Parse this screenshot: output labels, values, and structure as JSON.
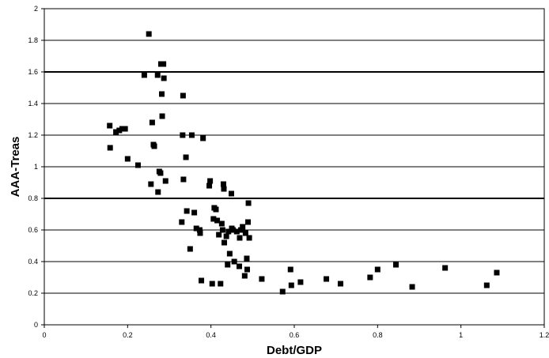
{
  "chart_data": {
    "type": "scatter",
    "title": "",
    "xlabel": "Debt/GDP",
    "ylabel": "AAA-Treas",
    "xlim": [
      0,
      1.2
    ],
    "ylim": [
      0,
      2
    ],
    "x_ticks": [
      "0",
      "0.2",
      "0.4",
      "0.6",
      "0.8",
      "1",
      "1.2"
    ],
    "y_ticks": [
      "0",
      "0.2",
      "0.4",
      "0.6",
      "0.8",
      "1",
      "1.2",
      "1.4",
      "1.6",
      "1.8",
      "2"
    ],
    "grid": "horizontal",
    "legend": "none",
    "marker_color": "#000000",
    "series": [
      {
        "points": [
          [
            0.157,
            1.26
          ],
          [
            0.158,
            1.12
          ],
          [
            0.172,
            1.22
          ],
          [
            0.18,
            1.23
          ],
          [
            0.187,
            1.24
          ],
          [
            0.194,
            1.24
          ],
          [
            0.2,
            1.05
          ],
          [
            0.225,
            1.01
          ],
          [
            0.24,
            1.58
          ],
          [
            0.251,
            1.84
          ],
          [
            0.256,
            0.89
          ],
          [
            0.259,
            1.28
          ],
          [
            0.262,
            1.14
          ],
          [
            0.264,
            1.13
          ],
          [
            0.272,
            1.58
          ],
          [
            0.273,
            0.84
          ],
          [
            0.276,
            0.97
          ],
          [
            0.279,
            0.96
          ],
          [
            0.28,
            1.65
          ],
          [
            0.282,
            1.46
          ],
          [
            0.283,
            1.32
          ],
          [
            0.286,
            1.65
          ],
          [
            0.287,
            1.56
          ],
          [
            0.291,
            0.91
          ],
          [
            0.33,
            0.65
          ],
          [
            0.332,
            1.2
          ],
          [
            0.333,
            1.45
          ],
          [
            0.334,
            0.92
          ],
          [
            0.34,
            1.06
          ],
          [
            0.342,
            0.72
          ],
          [
            0.35,
            0.48
          ],
          [
            0.354,
            1.2
          ],
          [
            0.36,
            0.71
          ],
          [
            0.365,
            0.61
          ],
          [
            0.373,
            0.6
          ],
          [
            0.374,
            0.58
          ],
          [
            0.377,
            0.28
          ],
          [
            0.381,
            1.18
          ],
          [
            0.396,
            0.88
          ],
          [
            0.398,
            0.91
          ],
          [
            0.403,
            0.26
          ],
          [
            0.406,
            0.67
          ],
          [
            0.408,
            0.74
          ],
          [
            0.412,
            0.73
          ],
          [
            0.415,
            0.66
          ],
          [
            0.419,
            0.57
          ],
          [
            0.423,
            0.26
          ],
          [
            0.426,
            0.64
          ],
          [
            0.428,
            0.6
          ],
          [
            0.43,
            0.89
          ],
          [
            0.431,
            0.86
          ],
          [
            0.432,
            0.52
          ],
          [
            0.437,
            0.56
          ],
          [
            0.44,
            0.38
          ],
          [
            0.442,
            0.59
          ],
          [
            0.445,
            0.45
          ],
          [
            0.449,
            0.83
          ],
          [
            0.45,
            0.61
          ],
          [
            0.453,
            0.6
          ],
          [
            0.456,
            0.4
          ],
          [
            0.462,
            0.59
          ],
          [
            0.468,
            0.37
          ],
          [
            0.469,
            0.55
          ],
          [
            0.472,
            0.6
          ],
          [
            0.476,
            0.62
          ],
          [
            0.481,
            0.31
          ],
          [
            0.483,
            0.58
          ],
          [
            0.486,
            0.42
          ],
          [
            0.487,
            0.35
          ],
          [
            0.489,
            0.65
          ],
          [
            0.49,
            0.77
          ],
          [
            0.492,
            0.55
          ],
          [
            0.522,
            0.29
          ],
          [
            0.572,
            0.21
          ],
          [
            0.591,
            0.35
          ],
          [
            0.593,
            0.25
          ],
          [
            0.615,
            0.27
          ],
          [
            0.677,
            0.29
          ],
          [
            0.711,
            0.26
          ],
          [
            0.782,
            0.3
          ],
          [
            0.8,
            0.35
          ],
          [
            0.844,
            0.38
          ],
          [
            0.883,
            0.24
          ],
          [
            0.962,
            0.36
          ],
          [
            1.062,
            0.25
          ],
          [
            1.086,
            0.33
          ]
        ]
      }
    ]
  }
}
